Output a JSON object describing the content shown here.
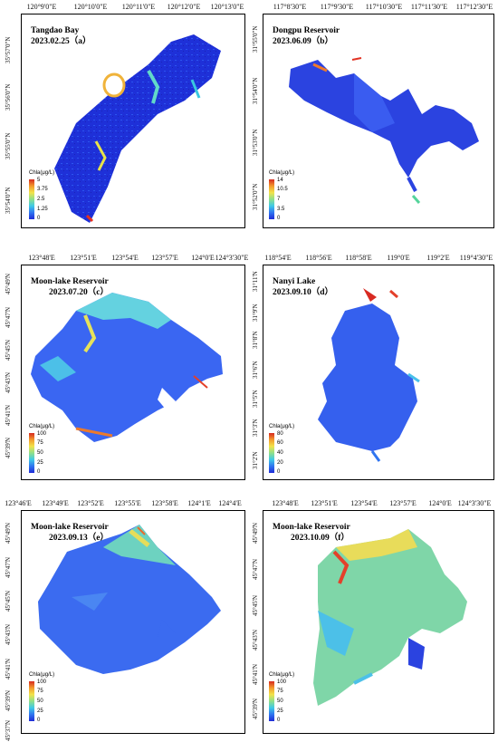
{
  "legend_unit": "Chla(μg/L)",
  "colormap": [
    "#1f2bd6",
    "#2f74f0",
    "#3fc9e6",
    "#8fe08a",
    "#f2e34a",
    "#f39a2c",
    "#d62a20"
  ],
  "panels": [
    {
      "name": "Tangdao Bay",
      "date": "2023.02.25（a）",
      "lon": [
        "120°9'0\"E",
        "120°10'0\"E",
        "120°11'0\"E",
        "120°12'0\"E",
        "120°13'0\"E"
      ],
      "lat": [
        "35°57'0\"N",
        "35°56'0\"N",
        "35°55'0\"N",
        "35°54'0\"N"
      ],
      "ticks": [
        "5",
        "3.75",
        "2.5",
        "1.25",
        "0"
      ]
    },
    {
      "name": "Dongpu Reservoir",
      "date": "2023.06.09（b）",
      "lon": [
        "117°8'30\"E",
        "117°9'30\"E",
        "117°10'30\"E",
        "117°11'30\"E",
        "117°12'30\"E"
      ],
      "lat": [
        "31°55'0\"N",
        "31°54'0\"N",
        "31°53'0\"N",
        "31°52'0\"N"
      ],
      "ticks": [
        "14",
        "10.5",
        "7",
        "3.5",
        "0"
      ]
    },
    {
      "name": "Moon-lake Reservoir",
      "date": "2023.07.20（c）",
      "lon": [
        "123°48'E",
        "123°51'E",
        "123°54'E",
        "123°57'E",
        "124°0'E",
        "124°3'30\"E"
      ],
      "lat": [
        "45°49'N",
        "45°47'N",
        "45°45'N",
        "45°43'N",
        "45°41'N",
        "45°39'N"
      ],
      "ticks": [
        "100",
        "75",
        "50",
        "25",
        "0"
      ]
    },
    {
      "name": "Nanyi Lake",
      "date": "2023.09.10（d）",
      "lon": [
        "118°54'E",
        "118°56'E",
        "118°58'E",
        "119°0'E",
        "119°2'E",
        "119°4'30\"E"
      ],
      "lat": [
        "31°11'N",
        "31°9'N",
        "31°8'N",
        "31°6'N",
        "31°5'N",
        "31°3'N",
        "31°2'N"
      ],
      "ticks": [
        "80",
        "60",
        "40",
        "20",
        "0"
      ]
    },
    {
      "name": "Moon-lake Reservoir",
      "date": "2023.09.13（e）",
      "lon": [
        "123°46'E",
        "123°49'E",
        "123°52'E",
        "123°55'E",
        "123°58'E",
        "124°1'E",
        "124°4'E"
      ],
      "lat": [
        "45°49'N",
        "45°47'N",
        "45°45'N",
        "45°43'N",
        "45°41'N",
        "45°39'N",
        "45°37'N"
      ],
      "ticks": [
        "100",
        "75",
        "50",
        "25",
        "0"
      ]
    },
    {
      "name": "Moon-lake Reservoir",
      "date": "2023.10.09（f）",
      "lon": [
        "123°48'E",
        "123°51'E",
        "123°54'E",
        "123°57'E",
        "124°0'E",
        "124°3'30\"E"
      ],
      "lat": [
        "45°49'N",
        "45°47'N",
        "45°45'N",
        "45°43'N",
        "45°41'N",
        "45°39'N"
      ],
      "ticks": [
        "100",
        "75",
        "50",
        "25",
        "0"
      ]
    }
  ]
}
